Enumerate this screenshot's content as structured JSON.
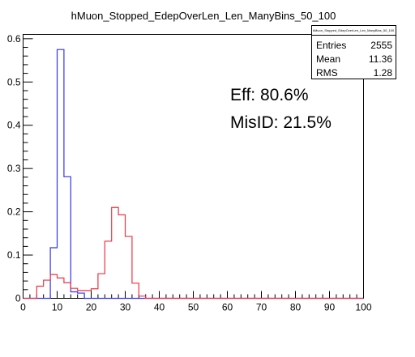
{
  "chart_data": {
    "type": "histogram",
    "title": "hMuon_Stopped_EdepOverLen_Len_ManyBins_50_100",
    "xlim": [
      0,
      100
    ],
    "ylim": [
      0,
      0.61
    ],
    "x_ticks": [
      0,
      10,
      20,
      30,
      40,
      50,
      60,
      70,
      80,
      90,
      100
    ],
    "y_ticks": [
      0,
      0.1,
      0.2,
      0.3,
      0.4,
      0.5,
      0.6
    ],
    "y_tick_labels": [
      "0",
      "0.1",
      "0.2",
      "0.3",
      "0.4",
      "0.5",
      "0.6"
    ],
    "bin_width": 2,
    "grid": false,
    "series": [
      {
        "color": "#3333ee",
        "bin_edges": [
          0,
          2,
          4,
          6,
          8,
          10,
          12,
          14,
          16,
          18,
          20,
          22,
          24,
          26,
          28,
          30,
          32,
          34,
          36,
          38,
          40,
          42,
          44,
          46,
          48,
          50,
          52,
          54,
          56,
          58,
          60,
          62,
          64,
          66,
          68,
          70,
          72,
          74,
          76,
          78,
          80,
          82,
          84,
          86,
          88,
          90,
          92,
          94,
          96,
          98,
          100
        ],
        "values": [
          0,
          0,
          0,
          0,
          0.117,
          0.575,
          0.281,
          0.015,
          0.012,
          0,
          0,
          0,
          0,
          0,
          0,
          0,
          0,
          0,
          0,
          0,
          0,
          0,
          0,
          0,
          0,
          0,
          0,
          0,
          0,
          0,
          0,
          0,
          0,
          0,
          0,
          0,
          0,
          0,
          0,
          0,
          0,
          0,
          0,
          0,
          0,
          0,
          0,
          0,
          0,
          0
        ]
      },
      {
        "color": "#ee3344",
        "bin_edges": [
          0,
          2,
          4,
          6,
          8,
          10,
          12,
          14,
          16,
          18,
          20,
          22,
          24,
          26,
          28,
          30,
          32,
          34,
          36,
          38,
          40,
          42,
          44,
          46,
          48,
          50,
          52,
          54,
          56,
          58,
          60,
          62,
          64,
          66,
          68,
          70,
          72,
          74,
          76,
          78,
          80,
          82,
          84,
          86,
          88,
          90,
          92,
          94,
          96,
          98,
          100
        ],
        "values": [
          0,
          0,
          0.028,
          0.042,
          0.055,
          0.047,
          0.036,
          0.023,
          0.018,
          0.018,
          0.022,
          0.057,
          0.132,
          0.21,
          0.193,
          0.143,
          0.035,
          0.005,
          0,
          0,
          0,
          0,
          0,
          0,
          0,
          0,
          0,
          0,
          0,
          0,
          0,
          0,
          0,
          0,
          0,
          0,
          0,
          0,
          0,
          0,
          0,
          0,
          0,
          0,
          0,
          0,
          0,
          0,
          0,
          0
        ]
      }
    ],
    "stats_box": {
      "header": "hMuon_Stopped_EdepOverLen_Len_ManyBins_50_100",
      "rows": [
        {
          "label": "Entries",
          "value": "2555"
        },
        {
          "label": "Mean",
          "value": "11.36"
        },
        {
          "label": "RMS",
          "value": "1.28"
        }
      ]
    },
    "annotations": [
      "Eff: 80.6%",
      "MisID: 21.5%"
    ]
  }
}
